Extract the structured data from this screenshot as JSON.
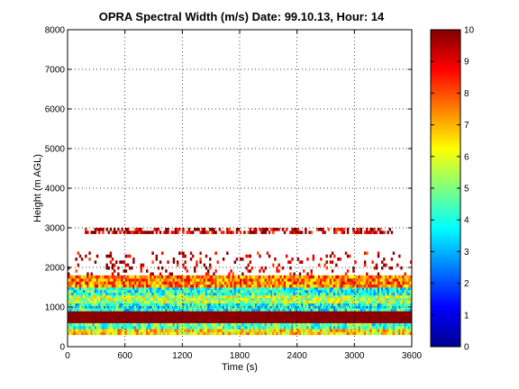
{
  "chart_data": {
    "type": "heatmap",
    "title": "OPRA Spectral Width (m/s)  Date: 99.10.13, Hour: 14",
    "xlabel": "Time (s)",
    "ylabel": "Height (m AGL)",
    "xlim": [
      0,
      3600
    ],
    "ylim": [
      0,
      8000
    ],
    "x_ticks": [
      0,
      600,
      1200,
      1800,
      2400,
      3000,
      3600
    ],
    "y_ticks": [
      0,
      1000,
      2000,
      3000,
      4000,
      5000,
      6000,
      7000,
      8000
    ],
    "grid": true,
    "colorbar": {
      "range": [
        0,
        10
      ],
      "ticks": [
        0,
        1,
        2,
        3,
        4,
        5,
        6,
        7,
        8,
        9,
        10
      ],
      "colormap": "jet"
    },
    "bands": [
      {
        "height_range": [
          300,
          450
        ],
        "value_approx": 6.5
      },
      {
        "height_range": [
          450,
          600
        ],
        "value_approx": 4.5
      },
      {
        "height_range": [
          600,
          900
        ],
        "value_approx": 10
      },
      {
        "height_range": [
          900,
          1100
        ],
        "value_approx": 4
      },
      {
        "height_range": [
          1100,
          1300
        ],
        "value_approx": 5.5
      },
      {
        "height_range": [
          1300,
          1500
        ],
        "value_approx": 4
      },
      {
        "height_range": [
          1500,
          1800
        ],
        "value_approx": 7.5
      },
      {
        "height_range": [
          1800,
          2400
        ],
        "value_approx": 9.5,
        "coverage": "sparse"
      },
      {
        "height_range": [
          2850,
          3000
        ],
        "value_approx": 9.5,
        "coverage": "intermittent"
      }
    ]
  }
}
